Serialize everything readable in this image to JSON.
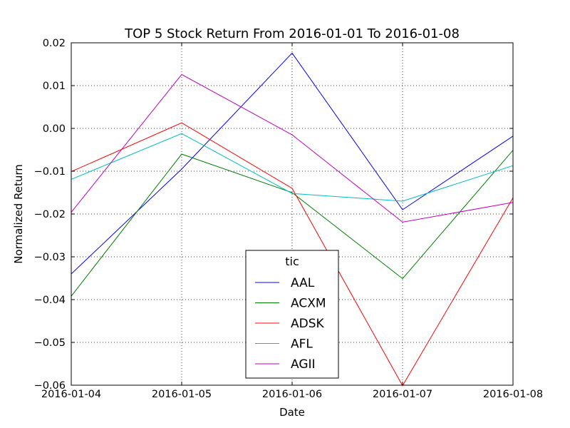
{
  "chart_data": {
    "type": "line",
    "title": "TOP 5 Stock Return From 2016-01-01 To 2016-01-08",
    "xlabel": "Date",
    "ylabel": "Normalized Return",
    "x": [
      "2016-01-04",
      "2016-01-05",
      "2016-01-06",
      "2016-01-07",
      "2016-01-08"
    ],
    "ylim": [
      -0.06,
      0.02
    ],
    "yticks": [
      "0.02",
      "0.01",
      "0.00",
      "−0.01",
      "−0.02",
      "−0.03",
      "−0.04",
      "−0.05",
      "−0.06"
    ],
    "ytick_values": [
      0.02,
      0.01,
      0.0,
      -0.01,
      -0.02,
      -0.03,
      -0.04,
      -0.05,
      -0.06
    ],
    "grid": true,
    "legend": {
      "title": "tic",
      "placement": "lower-center"
    },
    "series": [
      {
        "name": "AAL",
        "color": "#0000ff",
        "values": [
          -0.034,
          -0.0095,
          0.0176,
          -0.019,
          -0.0018
        ]
      },
      {
        "name": "ACXM",
        "color": "#008000",
        "values": [
          -0.0392,
          -0.006,
          -0.015,
          -0.0351,
          -0.0051
        ]
      },
      {
        "name": "ADSK",
        "color": "#ff0000",
        "values": [
          -0.0101,
          0.0013,
          -0.014,
          -0.0601,
          -0.0162
        ]
      },
      {
        "name": "AFL",
        "color": "#00bfbf",
        "values": [
          -0.0119,
          -0.0012,
          -0.0152,
          -0.017,
          -0.0087
        ]
      },
      {
        "name": "AGII",
        "color": "#bf00bf",
        "values": [
          -0.0196,
          0.0126,
          -0.0015,
          -0.0219,
          -0.0173
        ]
      }
    ]
  }
}
